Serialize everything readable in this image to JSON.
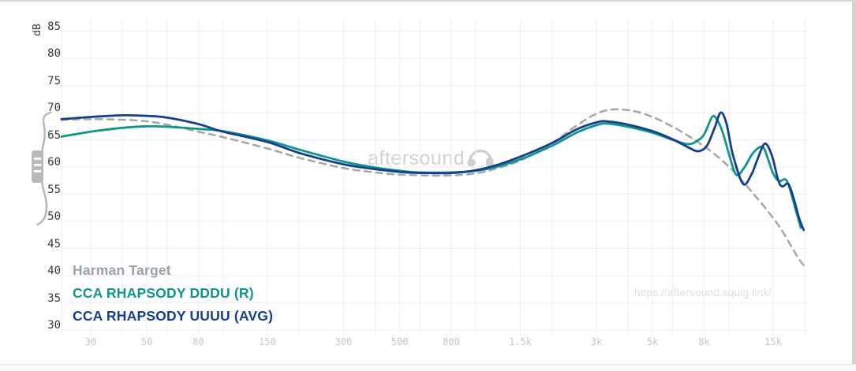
{
  "page": {
    "watermark_text": "aftersound",
    "footer_url": "https://aftersound.squig.link/"
  },
  "axes": {
    "y_unit_label": "dB",
    "y_tick_values": [
      85,
      80,
      75,
      70,
      65,
      60,
      55,
      50,
      45,
      40,
      35,
      30
    ],
    "y_tick_labels": [
      "85",
      "80",
      "75",
      "70",
      "65",
      "60",
      "55",
      "50",
      "45",
      "40",
      "35",
      "30"
    ],
    "x_tick_values": [
      30,
      50,
      80,
      150,
      300,
      500,
      800,
      1500,
      3000,
      5000,
      8000,
      15000
    ],
    "x_tick_labels": [
      "30",
      "50",
      "80",
      "150",
      "300",
      "500",
      "800",
      "1.5k",
      "3k",
      "5k",
      "8k",
      "15k"
    ]
  },
  "legend": [
    {
      "label": "Harman Target",
      "color": "#9aa1a8"
    },
    {
      "label": "CCA RHAPSODY DDDU (R)",
      "color": "#0e968a"
    },
    {
      "label": "CCA RHAPSODY UUUU (AVG)",
      "color": "#163e8f"
    }
  ],
  "chart_data": {
    "type": "line",
    "x_scale": "log",
    "x_range_hz": [
      23,
      20000
    ],
    "y_range_db": [
      27,
      87
    ],
    "grid": true,
    "legend_position": "bottom-left",
    "y_gridlines_db": [
      85,
      80,
      75,
      70,
      65,
      60,
      55,
      50,
      45,
      40,
      35,
      30
    ],
    "x_gridlines_hz": [
      30,
      40,
      50,
      60,
      80,
      100,
      150,
      200,
      300,
      400,
      500,
      600,
      800,
      1000,
      1500,
      2000,
      3000,
      4000,
      5000,
      6000,
      8000,
      10000,
      15000,
      20000
    ],
    "series": [
      {
        "name": "Harman Target",
        "color": "#a8a8a8",
        "dashed": true,
        "width": 2.6,
        "points": [
          [
            23,
            68.7
          ],
          [
            30,
            68.8
          ],
          [
            40,
            68.7
          ],
          [
            50,
            68.4
          ],
          [
            60,
            67.8
          ],
          [
            80,
            66.5
          ],
          [
            100,
            65.5
          ],
          [
            150,
            63.4
          ],
          [
            200,
            61.7
          ],
          [
            300,
            59.8
          ],
          [
            400,
            59.0
          ],
          [
            500,
            58.6
          ],
          [
            700,
            58.4
          ],
          [
            900,
            58.6
          ],
          [
            1100,
            59.2
          ],
          [
            1500,
            61.2
          ],
          [
            2000,
            64.4
          ],
          [
            2500,
            67.6
          ],
          [
            3000,
            69.8
          ],
          [
            3500,
            70.6
          ],
          [
            4200,
            70.3
          ],
          [
            5000,
            69.2
          ],
          [
            6000,
            67.4
          ],
          [
            7000,
            65.6
          ],
          [
            8000,
            63.8
          ],
          [
            9000,
            62.0
          ],
          [
            10000,
            60.1
          ],
          [
            11000,
            58.1
          ],
          [
            12000,
            56.1
          ],
          [
            13000,
            54.2
          ],
          [
            14000,
            52.4
          ],
          [
            15000,
            50.6
          ],
          [
            16000,
            48.8
          ],
          [
            17000,
            46.8
          ],
          [
            18000,
            44.8
          ],
          [
            19000,
            43.0
          ],
          [
            19800,
            41.9
          ]
        ]
      },
      {
        "name": "CCA RHAPSODY DDDU (R)",
        "color": "#0e968a",
        "dashed": false,
        "width": 2.8,
        "points": [
          [
            23,
            65.6
          ],
          [
            30,
            66.5
          ],
          [
            40,
            67.2
          ],
          [
            50,
            67.5
          ],
          [
            60,
            67.4
          ],
          [
            80,
            67.0
          ],
          [
            100,
            66.6
          ],
          [
            150,
            64.9
          ],
          [
            200,
            63.2
          ],
          [
            300,
            61.0
          ],
          [
            400,
            59.9
          ],
          [
            500,
            59.3
          ],
          [
            600,
            59.0
          ],
          [
            800,
            59.0
          ],
          [
            1000,
            59.3
          ],
          [
            1200,
            60.0
          ],
          [
            1500,
            61.4
          ],
          [
            2000,
            63.9
          ],
          [
            2500,
            66.3
          ],
          [
            3000,
            67.7
          ],
          [
            3300,
            68.0
          ],
          [
            4000,
            67.4
          ],
          [
            5000,
            66.3
          ],
          [
            6000,
            65.0
          ],
          [
            6900,
            64.2
          ],
          [
            7500,
            64.8
          ],
          [
            8000,
            66.0
          ],
          [
            8600,
            69.2
          ],
          [
            9000,
            68.7
          ],
          [
            9500,
            66.2
          ],
          [
            10000,
            62.6
          ],
          [
            10700,
            58.6
          ],
          [
            11500,
            59.8
          ],
          [
            12500,
            62.6
          ],
          [
            13600,
            63.7
          ],
          [
            14300,
            61.5
          ],
          [
            15000,
            58.8
          ],
          [
            15800,
            57.4
          ],
          [
            16800,
            57.7
          ],
          [
            17500,
            55.8
          ],
          [
            18500,
            51.8
          ],
          [
            19300,
            48.8
          ]
        ]
      },
      {
        "name": "CCA RHAPSODY UUUU (AVG)",
        "color": "#163e8f",
        "dashed": false,
        "width": 2.8,
        "points": [
          [
            23,
            68.8
          ],
          [
            30,
            69.2
          ],
          [
            40,
            69.5
          ],
          [
            50,
            69.4
          ],
          [
            60,
            69.1
          ],
          [
            80,
            67.9
          ],
          [
            100,
            66.5
          ],
          [
            150,
            64.6
          ],
          [
            200,
            62.6
          ],
          [
            300,
            60.5
          ],
          [
            400,
            59.6
          ],
          [
            500,
            59.1
          ],
          [
            600,
            58.9
          ],
          [
            800,
            58.9
          ],
          [
            1000,
            59.4
          ],
          [
            1200,
            60.3
          ],
          [
            1500,
            61.9
          ],
          [
            2000,
            64.4
          ],
          [
            2500,
            66.9
          ],
          [
            3000,
            68.2
          ],
          [
            3300,
            68.4
          ],
          [
            4000,
            67.8
          ],
          [
            5000,
            66.6
          ],
          [
            6000,
            65.1
          ],
          [
            7000,
            63.5
          ],
          [
            7600,
            62.9
          ],
          [
            8200,
            63.9
          ],
          [
            8800,
            67.2
          ],
          [
            9300,
            70.0
          ],
          [
            9800,
            68.0
          ],
          [
            10400,
            62.2
          ],
          [
            11400,
            56.9
          ],
          [
            12300,
            58.6
          ],
          [
            13000,
            61.4
          ],
          [
            13900,
            64.3
          ],
          [
            14800,
            62.2
          ],
          [
            15700,
            57.6
          ],
          [
            16300,
            56.4
          ],
          [
            17200,
            56.9
          ],
          [
            18000,
            54.5
          ],
          [
            19000,
            50.6
          ],
          [
            19800,
            48.4
          ]
        ]
      }
    ]
  }
}
